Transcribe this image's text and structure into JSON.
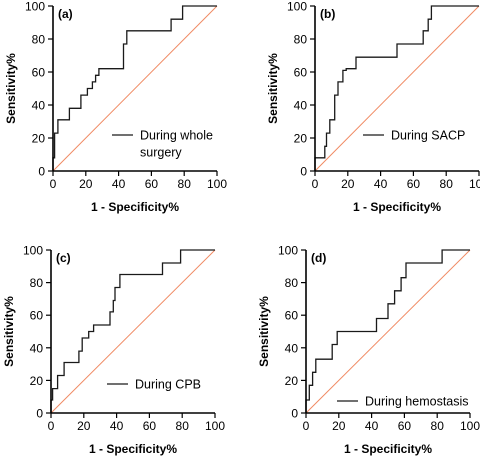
{
  "chart_data": [
    {
      "type": "line",
      "panel_label": "(a)",
      "xlabel": "1 - Specificity%",
      "ylabel": "Sensitivity%",
      "xlim": [
        0,
        100
      ],
      "ylim": [
        0,
        100
      ],
      "xticks": [
        0,
        20,
        40,
        60,
        80,
        100
      ],
      "yticks": [
        0,
        20,
        40,
        60,
        80,
        100
      ],
      "legend": {
        "label_lines": [
          "During whole",
          "surgery"
        ],
        "placement": "bottom-right"
      },
      "series": [
        {
          "x": [
            0,
            0,
            1,
            1,
            3,
            3,
            10,
            10,
            17,
            17,
            21,
            21,
            24,
            24,
            26,
            26,
            28,
            28,
            34,
            34,
            43,
            43,
            45,
            45,
            72,
            72,
            79,
            79,
            100
          ],
          "y": [
            0,
            8,
            8,
            23,
            23,
            31,
            31,
            38,
            38,
            46,
            46,
            50,
            50,
            54,
            54,
            58,
            58,
            62,
            62,
            62,
            62,
            77,
            77,
            85,
            85,
            92,
            92,
            100,
            100
          ]
        },
        {
          "x": [
            0,
            100
          ],
          "y": [
            0,
            100
          ]
        }
      ],
      "colors": {
        "roc": "#1a1a1a",
        "reference": "#f08a63"
      }
    },
    {
      "type": "line",
      "panel_label": "(b)",
      "xlabel": "1 - Specificity%",
      "ylabel": "Sensitivity%",
      "xlim": [
        0,
        100
      ],
      "ylim": [
        0,
        100
      ],
      "xticks": [
        0,
        20,
        40,
        60,
        80,
        100
      ],
      "yticks": [
        0,
        20,
        40,
        60,
        80,
        100
      ],
      "legend": {
        "label_lines": [
          "During SACP"
        ],
        "placement": "bottom-right"
      },
      "series": [
        {
          "x": [
            0,
            0,
            6,
            6,
            7,
            7,
            9,
            9,
            12,
            12,
            14,
            14,
            17,
            17,
            19,
            19,
            25,
            25,
            47,
            47,
            50,
            50,
            66,
            66,
            69,
            69,
            71,
            71,
            100
          ],
          "y": [
            0,
            8,
            8,
            15,
            15,
            23,
            23,
            31,
            31,
            46,
            46,
            54,
            54,
            61,
            61,
            62,
            62,
            69,
            69,
            69,
            69,
            77,
            77,
            85,
            85,
            92,
            92,
            100,
            100
          ]
        },
        {
          "x": [
            0,
            100
          ],
          "y": [
            0,
            100
          ]
        }
      ],
      "colors": {
        "roc": "#1a1a1a",
        "reference": "#f08a63"
      }
    },
    {
      "type": "line",
      "panel_label": "(c)",
      "xlabel": "1 - Specificity%",
      "ylabel": "Sensitivity%",
      "xlim": [
        0,
        100
      ],
      "ylim": [
        0,
        100
      ],
      "xticks": [
        0,
        20,
        40,
        60,
        80,
        100
      ],
      "yticks": [
        0,
        20,
        40,
        60,
        80,
        100
      ],
      "legend": {
        "label_lines": [
          "During CPB"
        ],
        "placement": "bottom-right"
      },
      "series": [
        {
          "x": [
            0,
            0,
            1,
            1,
            4,
            4,
            8,
            8,
            17,
            17,
            19,
            19,
            23,
            23,
            26,
            26,
            36,
            36,
            38,
            38,
            39,
            39,
            42,
            42,
            68,
            68,
            79,
            79,
            100
          ],
          "y": [
            0,
            8,
            8,
            15,
            15,
            23,
            23,
            31,
            31,
            38,
            38,
            46,
            46,
            50,
            50,
            54,
            54,
            62,
            62,
            69,
            69,
            77,
            77,
            85,
            85,
            92,
            92,
            100,
            100
          ]
        },
        {
          "x": [
            0,
            100
          ],
          "y": [
            0,
            100
          ]
        }
      ],
      "colors": {
        "roc": "#1a1a1a",
        "reference": "#f08a63"
      }
    },
    {
      "type": "line",
      "panel_label": "(d)",
      "xlabel": "1 - Specificity%",
      "ylabel": "Sensitivity%",
      "xlim": [
        0,
        100
      ],
      "ylim": [
        0,
        100
      ],
      "xticks": [
        0,
        20,
        40,
        60,
        80,
        100
      ],
      "yticks": [
        0,
        20,
        40,
        60,
        80,
        100
      ],
      "legend": {
        "label_lines": [
          "During hemostasis"
        ],
        "placement": "bottom-right"
      },
      "series": [
        {
          "x": [
            0,
            0,
            2,
            2,
            4,
            4,
            6,
            6,
            16,
            16,
            19,
            19,
            43,
            43,
            50,
            50,
            54,
            54,
            58,
            58,
            61,
            61,
            83,
            83,
            100
          ],
          "y": [
            0,
            8,
            8,
            17,
            17,
            25,
            25,
            33,
            33,
            42,
            42,
            50,
            50,
            58,
            58,
            67,
            67,
            75,
            75,
            83,
            83,
            92,
            92,
            100,
            100
          ]
        },
        {
          "x": [
            0,
            100
          ],
          "y": [
            0,
            100
          ]
        }
      ],
      "colors": {
        "roc": "#1a1a1a",
        "reference": "#f08a63"
      }
    }
  ]
}
